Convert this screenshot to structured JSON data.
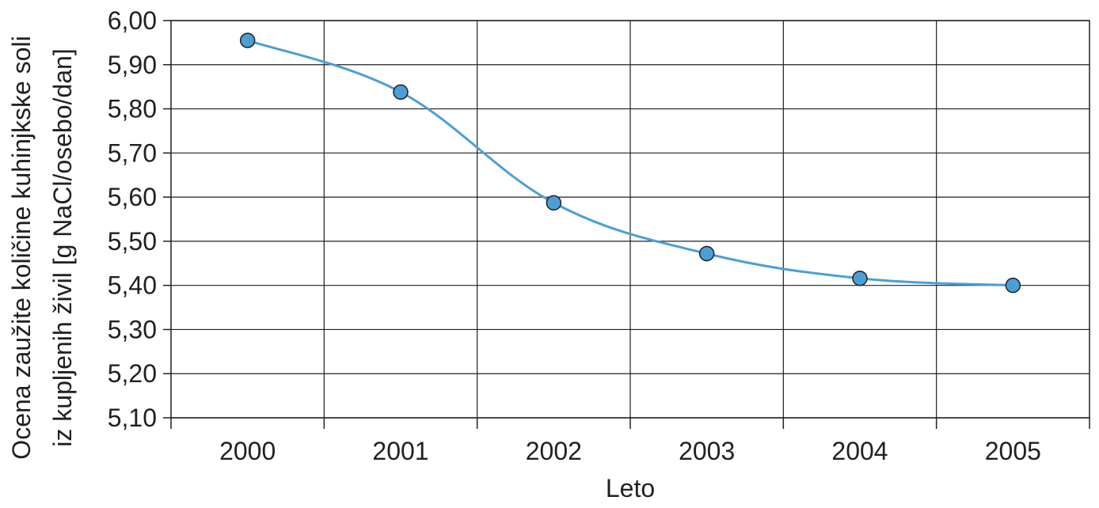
{
  "chart_data": {
    "type": "line",
    "categories": [
      "2000",
      "2001",
      "2002",
      "2003",
      "2004",
      "2005"
    ],
    "series": [
      {
        "values": [
          5.955,
          5.838,
          5.587,
          5.472,
          5.416,
          5.4
        ],
        "color": "#4b9fd5"
      }
    ],
    "xlabel": "Leto",
    "ylabel_lines": [
      "Ocena zaužite količine kuhinjkske soli",
      "iz kupljenih živil [g NaCl/osebo/dan]"
    ],
    "ylim": [
      5.1,
      6.0
    ],
    "yticks": [
      "5,10",
      "5,20",
      "5,30",
      "5,40",
      "5,50",
      "5,60",
      "5,70",
      "5,80",
      "5,90",
      "6,00"
    ],
    "grid": true,
    "smooth": true
  }
}
